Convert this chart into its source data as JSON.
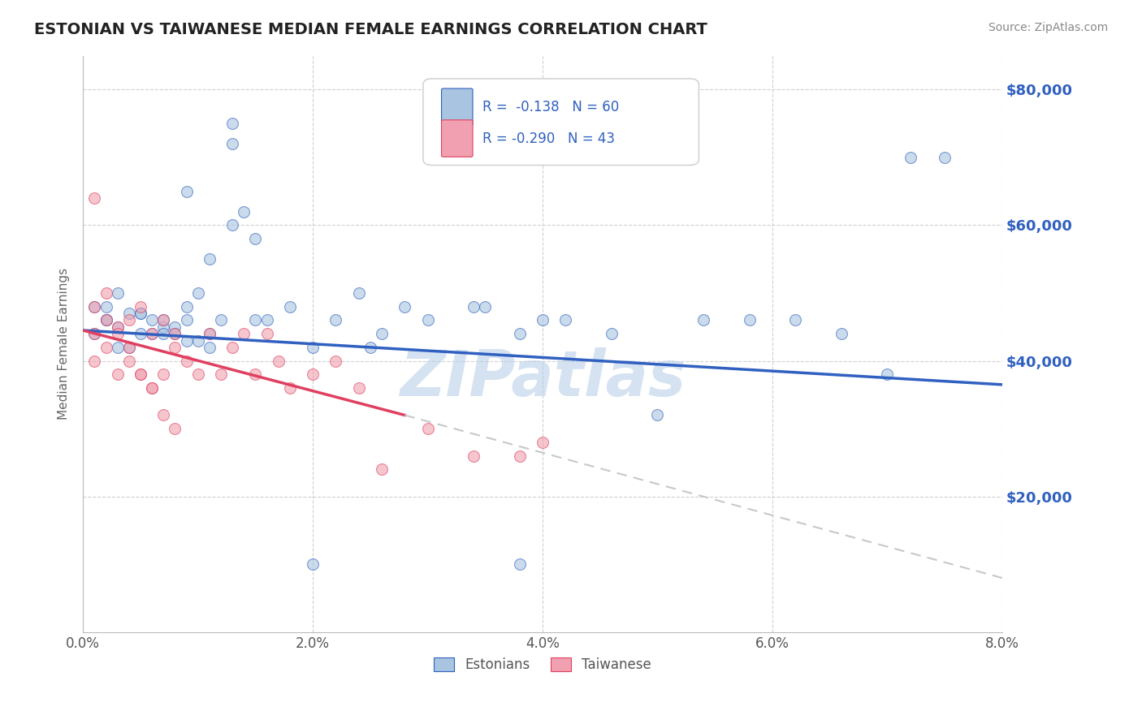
{
  "title": "ESTONIAN VS TAIWANESE MEDIAN FEMALE EARNINGS CORRELATION CHART",
  "source_text": "Source: ZipAtlas.com",
  "ylabel": "Median Female Earnings",
  "xlim": [
    0.0,
    0.08
  ],
  "ylim": [
    0,
    85000
  ],
  "xtick_labels": [
    "0.0%",
    "2.0%",
    "4.0%",
    "6.0%",
    "8.0%"
  ],
  "xtick_positions": [
    0.0,
    0.02,
    0.04,
    0.06,
    0.08
  ],
  "ytick_positions": [
    20000,
    40000,
    60000,
    80000
  ],
  "ytick_labels": [
    "$20,000",
    "$40,000",
    "$60,000",
    "$80,000"
  ],
  "background_color": "#ffffff",
  "grid_color": "#d0d0d0",
  "watermark": "ZIPatlas",
  "watermark_color": "#b8cfe8",
  "legend_label1": "Estonians",
  "legend_label2": "Taiwanese",
  "scatter_color_blue": "#a8c4e0",
  "scatter_color_pink": "#f0a0b0",
  "line_color_blue": "#3060c0",
  "line_color_pink": "#e04060",
  "line_color_dashed": "#c8c8c8",
  "dot_size": 100,
  "dot_alpha": 0.6,
  "blue_line_x0": 0.0,
  "blue_line_x1": 0.08,
  "blue_line_y0": 44500,
  "blue_line_y1": 36500,
  "pink_line_x0": 0.0,
  "pink_line_x1": 0.028,
  "pink_line_y0": 44500,
  "pink_line_y1": 32000,
  "dash_line_x0": 0.028,
  "dash_line_x1": 0.08,
  "dash_line_y0": 32000,
  "dash_line_y1": 8000,
  "blue_x": [
    0.001,
    0.002,
    0.003,
    0.005,
    0.007,
    0.009,
    0.011,
    0.013,
    0.015,
    0.001,
    0.003,
    0.005,
    0.007,
    0.009,
    0.011,
    0.013,
    0.002,
    0.004,
    0.006,
    0.008,
    0.01,
    0.012,
    0.014,
    0.016,
    0.018,
    0.02,
    0.022,
    0.024,
    0.026,
    0.03,
    0.034,
    0.038,
    0.042,
    0.046,
    0.05,
    0.054,
    0.058,
    0.062,
    0.066,
    0.07,
    0.075,
    0.013,
    0.009,
    0.072,
    0.02,
    0.038,
    0.04,
    0.028,
    0.01,
    0.008,
    0.006,
    0.004,
    0.002,
    0.003,
    0.005,
    0.007,
    0.009,
    0.011,
    0.015,
    0.025,
    0.035
  ],
  "blue_y": [
    44000,
    46000,
    42000,
    47000,
    45000,
    43000,
    55000,
    72000,
    58000,
    48000,
    50000,
    44000,
    46000,
    48000,
    44000,
    60000,
    46000,
    47000,
    44000,
    45000,
    50000,
    46000,
    62000,
    46000,
    48000,
    42000,
    46000,
    50000,
    44000,
    46000,
    48000,
    44000,
    46000,
    44000,
    32000,
    46000,
    46000,
    46000,
    44000,
    38000,
    70000,
    75000,
    65000,
    70000,
    10000,
    10000,
    46000,
    48000,
    43000,
    44000,
    46000,
    42000,
    48000,
    45000,
    47000,
    44000,
    46000,
    42000,
    46000,
    42000,
    48000
  ],
  "pink_x": [
    0.001,
    0.001,
    0.001,
    0.002,
    0.002,
    0.003,
    0.003,
    0.004,
    0.004,
    0.005,
    0.005,
    0.006,
    0.006,
    0.007,
    0.007,
    0.008,
    0.008,
    0.009,
    0.01,
    0.011,
    0.012,
    0.013,
    0.014,
    0.015,
    0.016,
    0.017,
    0.018,
    0.02,
    0.022,
    0.024,
    0.026,
    0.03,
    0.034,
    0.038,
    0.04,
    0.001,
    0.002,
    0.003,
    0.004,
    0.005,
    0.006,
    0.007,
    0.008
  ],
  "pink_y": [
    64000,
    44000,
    40000,
    50000,
    42000,
    45000,
    38000,
    46000,
    40000,
    48000,
    38000,
    44000,
    36000,
    46000,
    38000,
    44000,
    42000,
    40000,
    38000,
    44000,
    38000,
    42000,
    44000,
    38000,
    44000,
    40000,
    36000,
    38000,
    40000,
    36000,
    24000,
    30000,
    26000,
    26000,
    28000,
    48000,
    46000,
    44000,
    42000,
    38000,
    36000,
    32000,
    30000
  ]
}
